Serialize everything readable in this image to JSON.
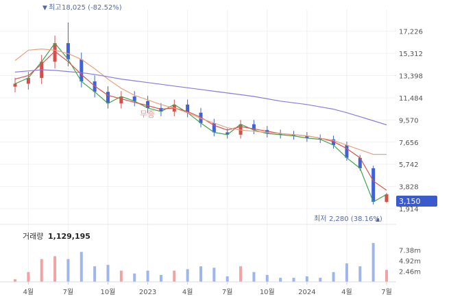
{
  "colors": {
    "up": "#d0504a",
    "down": "#3f63d6",
    "ma_short": "#3fa34d",
    "ma_mid": "#d9534f",
    "ma_long": "#e8a27c",
    "ma_xlong": "#8a7be0",
    "grid": "#eef0f3",
    "axis_text": "#555555",
    "label_blue": "#5466a8",
    "current_bg": "#3b5bcc",
    "vol_up": "#f0a3a3",
    "vol_down": "#9fb6ec"
  },
  "header": {
    "high_marker": "▼",
    "high_label": "최고",
    "high_value": "18,025 (-82.52%)",
    "low_label": "최저",
    "low_value": "2,280 (38.16%)",
    "low_marker": "▲"
  },
  "watermark": "무증",
  "current_price": "3,150",
  "volume": {
    "label": "거래량",
    "value": "1,129,195",
    "tick_labels": [
      "7.38m",
      "4.92m",
      "2.46m"
    ],
    "ticks": [
      7.38,
      4.92,
      2.46
    ],
    "max": 9.5
  },
  "chart_data": {
    "type": "line",
    "title": "",
    "x_tick_labels": [
      "4월",
      "7월",
      "10월",
      "2023",
      "4월",
      "7월",
      "10월",
      "2024",
      "4월",
      "7월"
    ],
    "y_tick_labels": [
      "17,226",
      "15,312",
      "13,398",
      "11,484",
      "9,570",
      "7,656",
      "5,742",
      "3,828",
      "1,914"
    ],
    "y_ticks": [
      17226,
      15312,
      13398,
      11484,
      9570,
      7656,
      5742,
      3828,
      1914
    ],
    "ylim": [
      1500,
      19100
    ],
    "high": 18025,
    "low": 2280,
    "current": 3150,
    "x_months": [
      "2022-03",
      "2022-04",
      "2022-05",
      "2022-06",
      "2022-07",
      "2022-08",
      "2022-09",
      "2022-10",
      "2022-11",
      "2022-12",
      "2023-01",
      "2023-02",
      "2023-03",
      "2023-04",
      "2023-05",
      "2023-06",
      "2023-07",
      "2023-08",
      "2023-09",
      "2023-10",
      "2023-11",
      "2023-12",
      "2024-01",
      "2024-02",
      "2024-03",
      "2024-04",
      "2024-05",
      "2024-06",
      "2024-07"
    ],
    "series": [
      {
        "values": [
          12700,
          13200,
          14600,
          16200,
          14800,
          12900,
          12000,
          11000,
          11600,
          11200,
          10600,
          10300,
          10900,
          10200,
          9300,
          8500,
          8300,
          9200,
          8700,
          8400,
          8300,
          8200,
          8000,
          7900,
          7400,
          6300,
          5400,
          2500,
          3150
        ]
      },
      {
        "values": [
          13100,
          13400,
          14400,
          15500,
          14600,
          13500,
          12500,
          11700,
          11400,
          11100,
          10800,
          10500,
          10600,
          10300,
          9800,
          9100,
          8700,
          9000,
          8800,
          8600,
          8400,
          8300,
          8200,
          8000,
          7700,
          7100,
          6300,
          4300,
          3500
        ]
      },
      {
        "values": [
          14700,
          15600,
          15700,
          15600,
          15300,
          14800,
          14000,
          13100,
          12300,
          11700,
          11300,
          10900,
          10600,
          10200,
          9700,
          9300,
          8900,
          8700,
          8600,
          8500,
          8400,
          8300,
          8200,
          8000,
          7800,
          7400,
          7000,
          6600,
          6600
        ]
      },
      {
        "values": [
          13700,
          13800,
          13900,
          13850,
          13750,
          13650,
          13500,
          13300,
          13100,
          12950,
          12800,
          12650,
          12500,
          12350,
          12200,
          12050,
          11900,
          11750,
          11600,
          11400,
          11200,
          11050,
          10900,
          10700,
          10500,
          10200,
          9850,
          9500,
          9150
        ]
      }
    ]
  }
}
